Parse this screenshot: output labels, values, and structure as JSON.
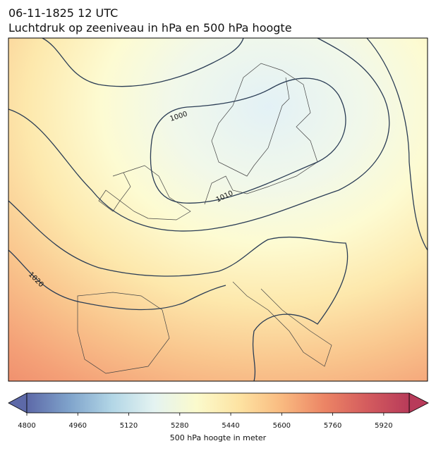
{
  "header": {
    "line1": "06-11-1825 12 UTC",
    "line2": "Luchtdruk op zeeniveau in hPa en 500 hPa hoogte"
  },
  "map": {
    "isobar_labels": [
      1000,
      1010,
      1020
    ]
  },
  "colorbar": {
    "label": "500 hPa hoogte in meter",
    "range": [
      4800,
      6000
    ],
    "ticks": [
      4800,
      4960,
      5120,
      5280,
      5440,
      5600,
      5760,
      5920
    ],
    "colors": [
      "#5d69a8",
      "#7fa3cb",
      "#b2d6e6",
      "#e4f3f1",
      "#fbfacc",
      "#fde3a2",
      "#f9ba80",
      "#ec8565",
      "#d45c5e",
      "#b83b5a"
    ]
  }
}
